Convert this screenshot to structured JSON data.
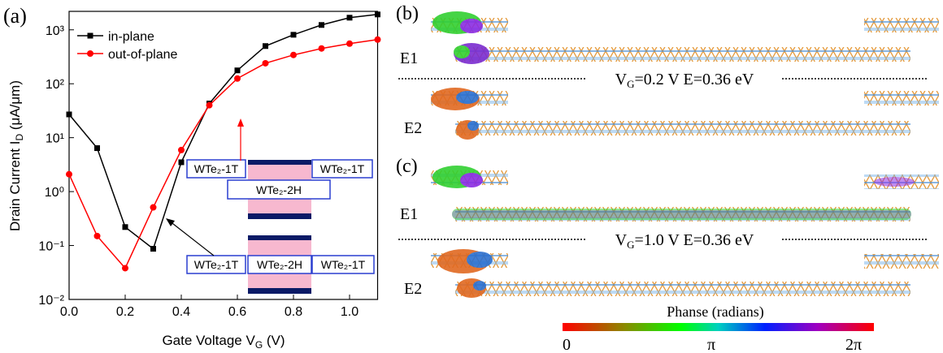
{
  "chart_data": {
    "type": "line",
    "panel_label": "(a)",
    "x_label": [
      "Gate Voltage V",
      "G",
      " (V)"
    ],
    "y_label": [
      "Drain Current I",
      "D",
      " (μA/μm)"
    ],
    "x": [
      0,
      0.1,
      0.2,
      0.3,
      0.4,
      0.5,
      0.6,
      0.7,
      0.8,
      0.9,
      1.0,
      1.1
    ],
    "series": [
      {
        "name": "in-plane",
        "color": "#000000",
        "marker": "square",
        "values": [
          27,
          6.4,
          0.22,
          0.087,
          3.5,
          43,
          177,
          500,
          810,
          1230,
          1680,
          1930
        ]
      },
      {
        "name": "out-of-plane",
        "color": "#ff0000",
        "marker": "circle",
        "values": [
          2.1,
          0.15,
          0.038,
          0.51,
          5.9,
          40,
          125,
          240,
          342,
          451,
          555,
          660
        ]
      }
    ],
    "xlim": [
      0,
      1.1
    ],
    "ylim": [
      0.01,
      2200
    ],
    "log_y": true,
    "legend": "top-left",
    "xticks": [
      {
        "value": 0,
        "label": "0.0"
      },
      0.2,
      0.4,
      0.6,
      0.8,
      {
        "value": 1,
        "label": "1.0"
      }
    ],
    "yticks": [
      {
        "value": 0.01,
        "label": "10⁻²"
      },
      {
        "value": 0.1,
        "label": "10⁻¹"
      },
      {
        "value": 1,
        "label": "10⁰"
      },
      {
        "value": 10,
        "label": "10¹"
      },
      {
        "value": 100,
        "label": "10²"
      },
      {
        "value": 1000,
        "label": "10³"
      }
    ],
    "inset_labels": [
      "WTe₂-1T",
      "WTe₂-1T",
      "WTe₂-2H",
      "WTe₂-1T",
      "WTe₂-2H",
      "WTe₂-1T"
    ]
  },
  "panels": {
    "b": {
      "label": "(b)",
      "e1": "E1",
      "e2": "E2",
      "condition": [
        "V",
        "G",
        "=0.2 V E=0.36 eV"
      ]
    },
    "c": {
      "label": "(c)",
      "e1": "E1",
      "e2": "E2",
      "condition": [
        "V",
        "G",
        "=1.0 V E=0.36 eV"
      ]
    },
    "colorbar": {
      "title": "Phanse (radians)",
      "ticks": [
        "0",
        "π",
        "2π"
      ]
    }
  }
}
